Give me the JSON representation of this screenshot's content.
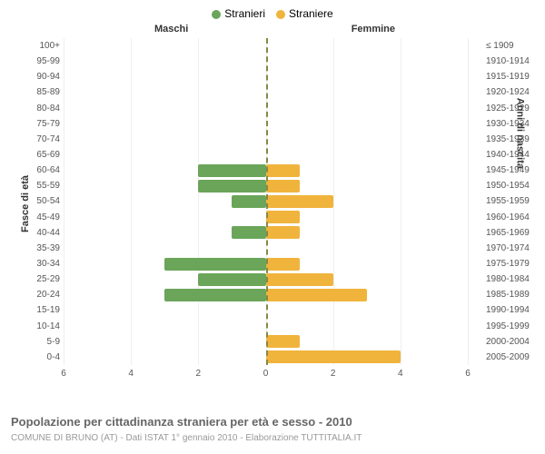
{
  "chart": {
    "type": "population-pyramid",
    "legend": [
      {
        "label": "Stranieri",
        "color": "#6aa55a"
      },
      {
        "label": "Straniere",
        "color": "#f0b43c"
      }
    ],
    "side_titles": {
      "left": "Maschi",
      "right": "Femmine"
    },
    "y_axis_left_title": "Fasce di età",
    "y_axis_right_title": "Anni di nascita",
    "x_axis": {
      "max": 6,
      "ticks_left": [
        6,
        4,
        2,
        0
      ],
      "ticks_right": [
        0,
        2,
        4,
        6
      ]
    },
    "colors": {
      "male": "#6aa55a",
      "female": "#f0b43c",
      "center_line": "#888844",
      "grid": "#eeeeee",
      "background": "#ffffff"
    },
    "bar_height_pct": 82,
    "rows": [
      {
        "age": "100+",
        "birth": "≤ 1909",
        "m": 0,
        "f": 0
      },
      {
        "age": "95-99",
        "birth": "1910-1914",
        "m": 0,
        "f": 0
      },
      {
        "age": "90-94",
        "birth": "1915-1919",
        "m": 0,
        "f": 0
      },
      {
        "age": "85-89",
        "birth": "1920-1924",
        "m": 0,
        "f": 0
      },
      {
        "age": "80-84",
        "birth": "1925-1929",
        "m": 0,
        "f": 0
      },
      {
        "age": "75-79",
        "birth": "1930-1934",
        "m": 0,
        "f": 0
      },
      {
        "age": "70-74",
        "birth": "1935-1939",
        "m": 0,
        "f": 0
      },
      {
        "age": "65-69",
        "birth": "1940-1944",
        "m": 0,
        "f": 0
      },
      {
        "age": "60-64",
        "birth": "1945-1949",
        "m": 2,
        "f": 1
      },
      {
        "age": "55-59",
        "birth": "1950-1954",
        "m": 2,
        "f": 1
      },
      {
        "age": "50-54",
        "birth": "1955-1959",
        "m": 1,
        "f": 2
      },
      {
        "age": "45-49",
        "birth": "1960-1964",
        "m": 0,
        "f": 1
      },
      {
        "age": "40-44",
        "birth": "1965-1969",
        "m": 1,
        "f": 1
      },
      {
        "age": "35-39",
        "birth": "1970-1974",
        "m": 0,
        "f": 0
      },
      {
        "age": "30-34",
        "birth": "1975-1979",
        "m": 3,
        "f": 1
      },
      {
        "age": "25-29",
        "birth": "1980-1984",
        "m": 2,
        "f": 2
      },
      {
        "age": "20-24",
        "birth": "1985-1989",
        "m": 3,
        "f": 3
      },
      {
        "age": "15-19",
        "birth": "1990-1994",
        "m": 0,
        "f": 0
      },
      {
        "age": "10-14",
        "birth": "1995-1999",
        "m": 0,
        "f": 0
      },
      {
        "age": "5-9",
        "birth": "2000-2004",
        "m": 0,
        "f": 1
      },
      {
        "age": "0-4",
        "birth": "2005-2009",
        "m": 0,
        "f": 4
      }
    ],
    "footer_title": "Popolazione per cittadinanza straniera per età e sesso - 2010",
    "footer_sub": "COMUNE DI BRUNO (AT) - Dati ISTAT 1° gennaio 2010 - Elaborazione TUTTITALIA.IT"
  }
}
